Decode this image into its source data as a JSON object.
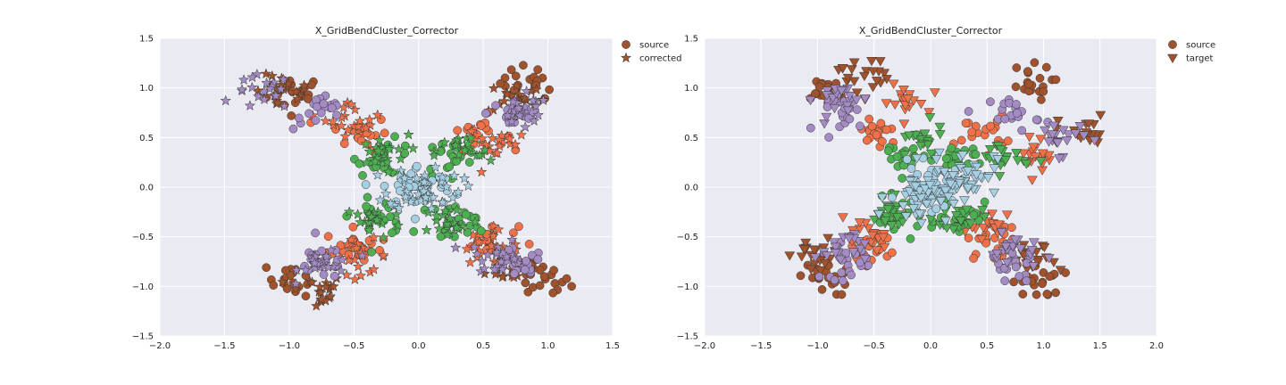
{
  "chart_data": [
    {
      "type": "scatter",
      "title": "X_GridBendCluster_Corrector",
      "xlabel": "",
      "ylabel": "",
      "xlim": [
        -2.0,
        1.5
      ],
      "ylim": [
        -1.5,
        1.5
      ],
      "xticks": [
        "−2.0",
        "−1.5",
        "−1.0",
        "−0.5",
        "0.0",
        "0.5",
        "1.0",
        "1.5"
      ],
      "yticks": [
        "−1.5",
        "−1.0",
        "−0.5",
        "0.0",
        "0.5",
        "1.0",
        "1.5"
      ],
      "grid": true,
      "legend": {
        "placement": "outside-top-right",
        "entries": [
          {
            "label": "source",
            "marker": "circle",
            "color": "#a0522d"
          },
          {
            "label": "corrected",
            "marker": "star",
            "color": "#a0522d"
          }
        ]
      },
      "clusters": [
        {
          "color": "#a0522d",
          "role": "source",
          "marker": "circle",
          "centers": [
            [
              -0.95,
              0.95
            ],
            [
              0.85,
              1.05
            ],
            [
              -0.95,
              -0.92
            ],
            [
              0.95,
              -0.95
            ]
          ]
        },
        {
          "color": "#a0522d",
          "role": "corrected",
          "marker": "star",
          "centers": [
            [
              -1.05,
              0.95
            ],
            [
              0.75,
              0.9
            ],
            [
              -0.8,
              -1.05
            ],
            [
              0.75,
              -0.8
            ]
          ]
        },
        {
          "color": "#f07048",
          "role": "source",
          "marker": "circle",
          "centers": [
            [
              -0.45,
              0.55
            ],
            [
              0.45,
              0.55
            ],
            [
              -0.5,
              -0.6
            ],
            [
              0.55,
              -0.55
            ]
          ]
        },
        {
          "color": "#f07048",
          "role": "corrected",
          "marker": "star",
          "centers": [
            [
              -0.5,
              0.7
            ],
            [
              0.6,
              0.45
            ],
            [
              -0.45,
              -0.7
            ],
            [
              0.55,
              -0.6
            ]
          ]
        },
        {
          "color": "#a58bc4",
          "role": "source",
          "marker": "circle",
          "centers": [
            [
              -0.75,
              0.75
            ],
            [
              0.75,
              0.75
            ],
            [
              -0.75,
              -0.75
            ],
            [
              0.75,
              -0.8
            ]
          ]
        },
        {
          "color": "#a58bc4",
          "role": "corrected",
          "marker": "star",
          "centers": [
            [
              -1.2,
              0.95
            ],
            [
              0.8,
              0.75
            ],
            [
              -0.7,
              -0.75
            ],
            [
              0.6,
              -0.7
            ]
          ]
        },
        {
          "color": "#4caf50",
          "role": "source",
          "marker": "circle",
          "centers": [
            [
              -0.25,
              0.3
            ],
            [
              0.25,
              0.3
            ],
            [
              -0.3,
              -0.3
            ],
            [
              0.3,
              -0.35
            ]
          ]
        },
        {
          "color": "#4caf50",
          "role": "corrected",
          "marker": "star",
          "centers": [
            [
              -0.3,
              0.35
            ],
            [
              0.35,
              0.35
            ],
            [
              -0.35,
              -0.35
            ],
            [
              0.25,
              -0.35
            ]
          ]
        },
        {
          "color": "#a6cfe2",
          "role": "source",
          "marker": "circle",
          "centers": [
            [
              0.0,
              0.0
            ]
          ]
        },
        {
          "color": "#a6cfe2",
          "role": "corrected",
          "marker": "star",
          "centers": [
            [
              0.05,
              0.0
            ]
          ]
        }
      ]
    },
    {
      "type": "scatter",
      "title": "X_GridBendCluster_Corrector",
      "xlabel": "",
      "ylabel": "",
      "xlim": [
        -2.0,
        2.0
      ],
      "ylim": [
        -1.5,
        1.5
      ],
      "xticks": [
        "−2.0",
        "−1.5",
        "−1.0",
        "−0.5",
        "0.0",
        "0.5",
        "1.0",
        "1.5",
        "2.0"
      ],
      "yticks": [
        "−1.5",
        "−1.0",
        "−0.5",
        "0.0",
        "0.5",
        "1.0",
        "1.5"
      ],
      "grid": true,
      "legend": {
        "placement": "outside-top-right",
        "entries": [
          {
            "label": "source",
            "marker": "circle",
            "color": "#a0522d"
          },
          {
            "label": "target",
            "marker": "triangle-down",
            "color": "#a0522d"
          }
        ]
      },
      "clusters": [
        {
          "color": "#a0522d",
          "role": "source",
          "marker": "circle",
          "centers": [
            [
              -0.95,
              0.95
            ],
            [
              0.85,
              1.05
            ],
            [
              -0.95,
              -0.92
            ],
            [
              0.95,
              -0.95
            ]
          ]
        },
        {
          "color": "#a0522d",
          "role": "target",
          "marker": "triangle-down",
          "centers": [
            [
              -0.6,
              1.15
            ],
            [
              1.35,
              0.55
            ],
            [
              -1.0,
              -0.7
            ],
            [
              0.9,
              -0.75
            ]
          ]
        },
        {
          "color": "#f07048",
          "role": "source",
          "marker": "circle",
          "centers": [
            [
              -0.45,
              0.55
            ],
            [
              0.45,
              0.55
            ],
            [
              -0.5,
              -0.6
            ],
            [
              0.55,
              -0.55
            ]
          ]
        },
        {
          "color": "#f07048",
          "role": "target",
          "marker": "triangle-down",
          "centers": [
            [
              -0.25,
              0.85
            ],
            [
              0.95,
              0.35
            ],
            [
              -0.6,
              -0.5
            ],
            [
              0.55,
              -0.4
            ]
          ]
        },
        {
          "color": "#a58bc4",
          "role": "source",
          "marker": "circle",
          "centers": [
            [
              -0.75,
              0.75
            ],
            [
              0.75,
              0.75
            ],
            [
              -0.75,
              -0.75
            ],
            [
              0.75,
              -0.8
            ]
          ]
        },
        {
          "color": "#a58bc4",
          "role": "target",
          "marker": "triangle-down",
          "centers": [
            [
              -0.8,
              0.9
            ],
            [
              1.15,
              0.5
            ],
            [
              -0.8,
              -0.6
            ],
            [
              0.75,
              -0.65
            ]
          ]
        },
        {
          "color": "#4caf50",
          "role": "source",
          "marker": "circle",
          "centers": [
            [
              -0.25,
              0.3
            ],
            [
              0.25,
              0.3
            ],
            [
              -0.3,
              -0.3
            ],
            [
              0.3,
              -0.35
            ]
          ]
        },
        {
          "color": "#4caf50",
          "role": "target",
          "marker": "triangle-down",
          "centers": [
            [
              -0.1,
              0.45
            ],
            [
              0.65,
              0.3
            ],
            [
              -0.35,
              -0.3
            ],
            [
              0.25,
              -0.3
            ]
          ]
        },
        {
          "color": "#a6cfe2",
          "role": "source",
          "marker": "circle",
          "centers": [
            [
              0.0,
              0.0
            ]
          ]
        },
        {
          "color": "#a6cfe2",
          "role": "target",
          "marker": "triangle-down",
          "centers": [
            [
              0.3,
              0.15
            ],
            [
              -0.1,
              -0.1
            ]
          ]
        }
      ]
    }
  ]
}
